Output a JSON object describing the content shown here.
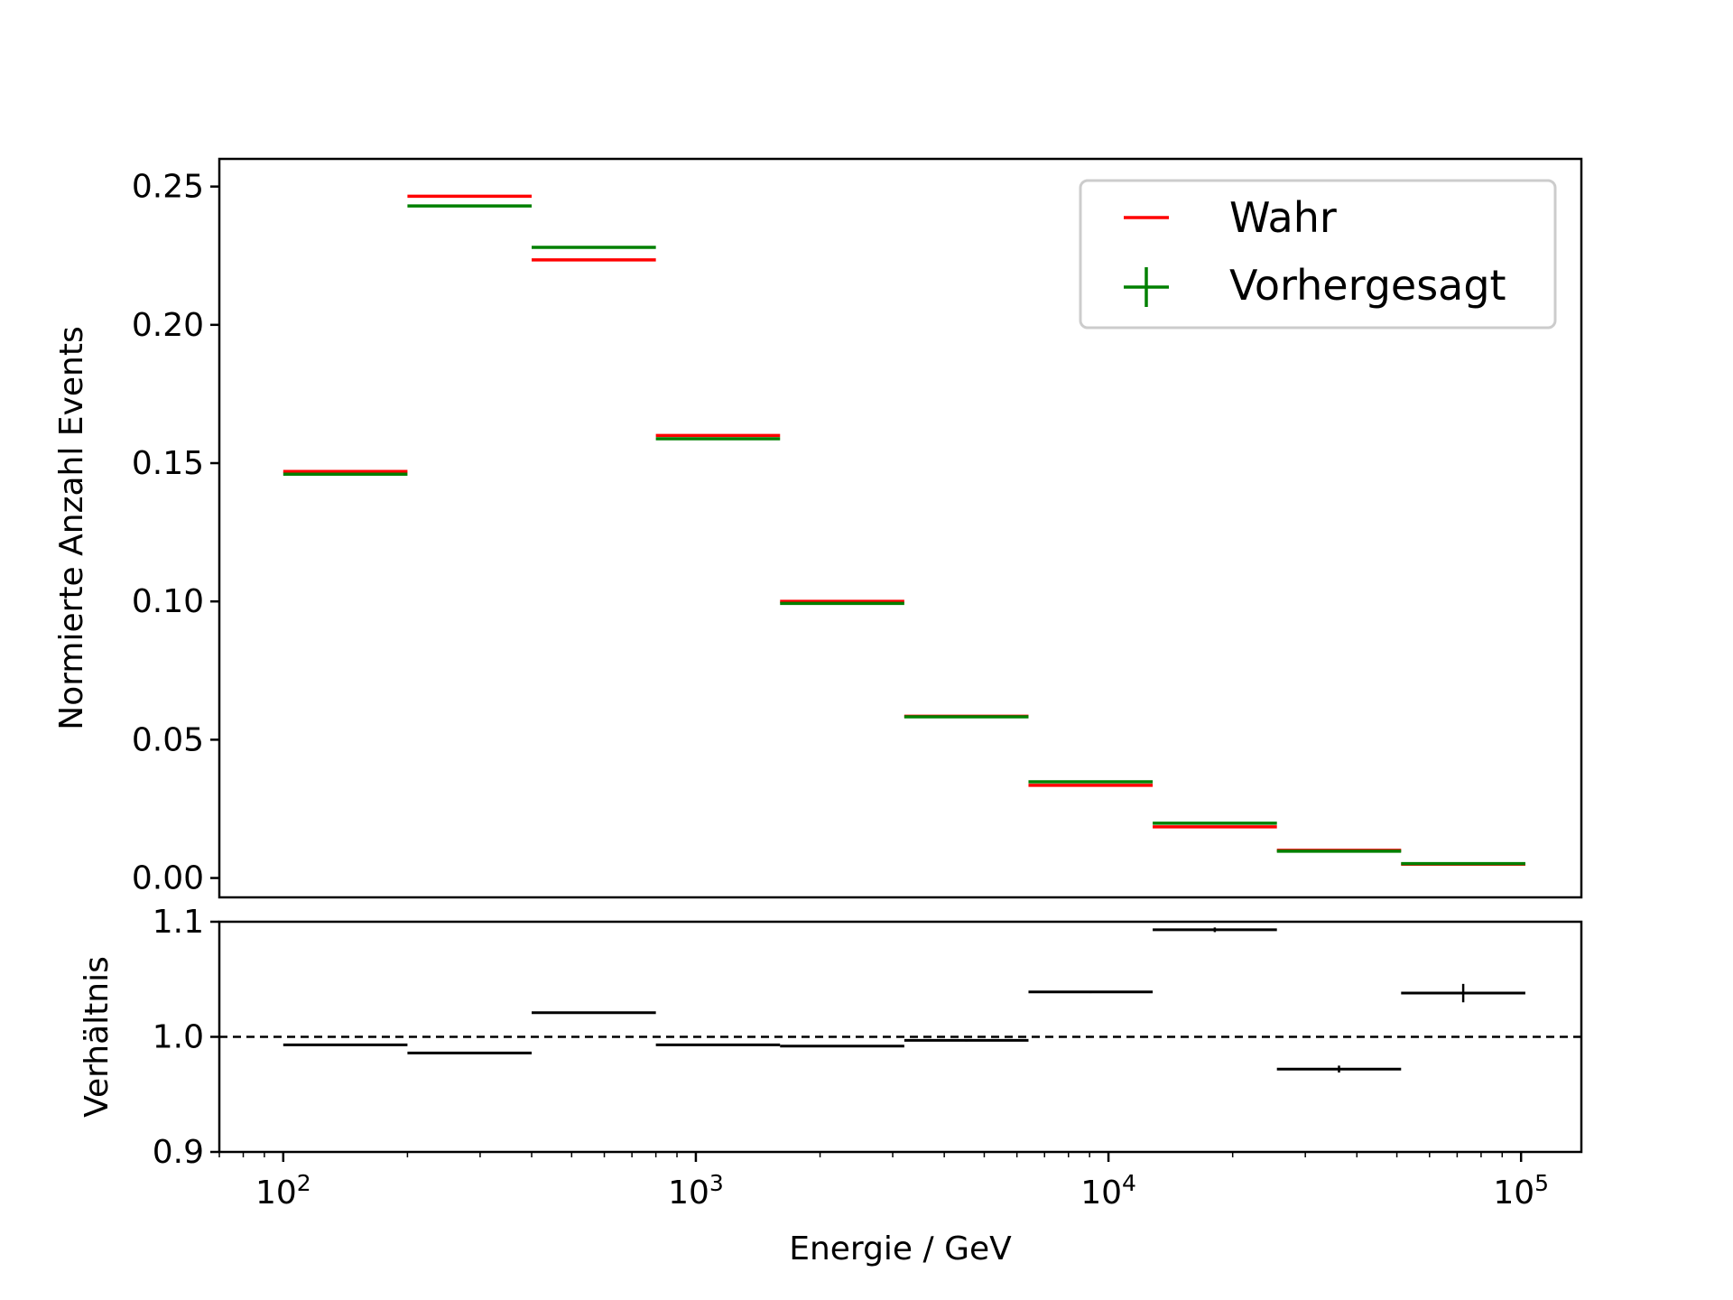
{
  "colors": {
    "true": "#ff0000",
    "predicted": "#008000",
    "ratio": "#000000",
    "background": "#ffffff"
  },
  "chart_data": [
    {
      "type": "step",
      "panel": "main",
      "xscale": "log",
      "xlim": [
        70,
        140000
      ],
      "ylim": [
        -0.007,
        0.26
      ],
      "ylabel": "Normierte Anzahl Events",
      "yticks": [
        0.0,
        0.05,
        0.1,
        0.15,
        0.2,
        0.25
      ],
      "ytick_labels": [
        "0.00",
        "0.05",
        "0.10",
        "0.15",
        "0.20",
        "0.25"
      ],
      "bin_edges": [
        100,
        200,
        400,
        800,
        1600,
        3200,
        6400,
        12800,
        25600,
        51200,
        102400
      ],
      "legend": {
        "position": "top-right",
        "entries": [
          "Wahr",
          "Vorhergesagt"
        ]
      },
      "series": [
        {
          "name": "Wahr",
          "color": "#ff0000",
          "marker": "hline",
          "values": [
            0.147,
            0.2465,
            0.2235,
            0.16,
            0.1,
            0.0585,
            0.0335,
            0.0185,
            0.01,
            0.005
          ]
        },
        {
          "name": "Vorhergesagt",
          "color": "#008000",
          "marker": "errorbar",
          "values": [
            0.146,
            0.243,
            0.228,
            0.1588,
            0.0993,
            0.0583,
            0.0348,
            0.0198,
            0.0097,
            0.0052
          ]
        }
      ]
    },
    {
      "type": "errorbar",
      "panel": "ratio",
      "xscale": "log",
      "xlim": [
        70,
        140000
      ],
      "ylim": [
        0.9,
        1.1
      ],
      "xlabel": "Energie / GeV",
      "ylabel": "Verhältnis",
      "yticks": [
        0.9,
        1.0,
        1.1
      ],
      "ytick_labels": [
        "0.9",
        "1.0",
        "1.1"
      ],
      "xticks": [
        100,
        1000,
        10000,
        100000
      ],
      "xtick_labels": [
        {
          "base": "10",
          "exp": "2"
        },
        {
          "base": "10",
          "exp": "3"
        },
        {
          "base": "10",
          "exp": "4"
        },
        {
          "base": "10",
          "exp": "5"
        }
      ],
      "reference_line": 1.0,
      "bin_edges": [
        100,
        200,
        400,
        800,
        1600,
        3200,
        6400,
        12800,
        25600,
        51200,
        102400
      ],
      "values": [
        0.993,
        0.986,
        1.021,
        0.993,
        0.992,
        0.997,
        1.039,
        1.093,
        0.972,
        1.038
      ],
      "errors": [
        0.0005,
        0.0005,
        0.0005,
        0.0005,
        0.0005,
        0.001,
        0.001,
        0.002,
        0.003,
        0.008
      ]
    }
  ]
}
